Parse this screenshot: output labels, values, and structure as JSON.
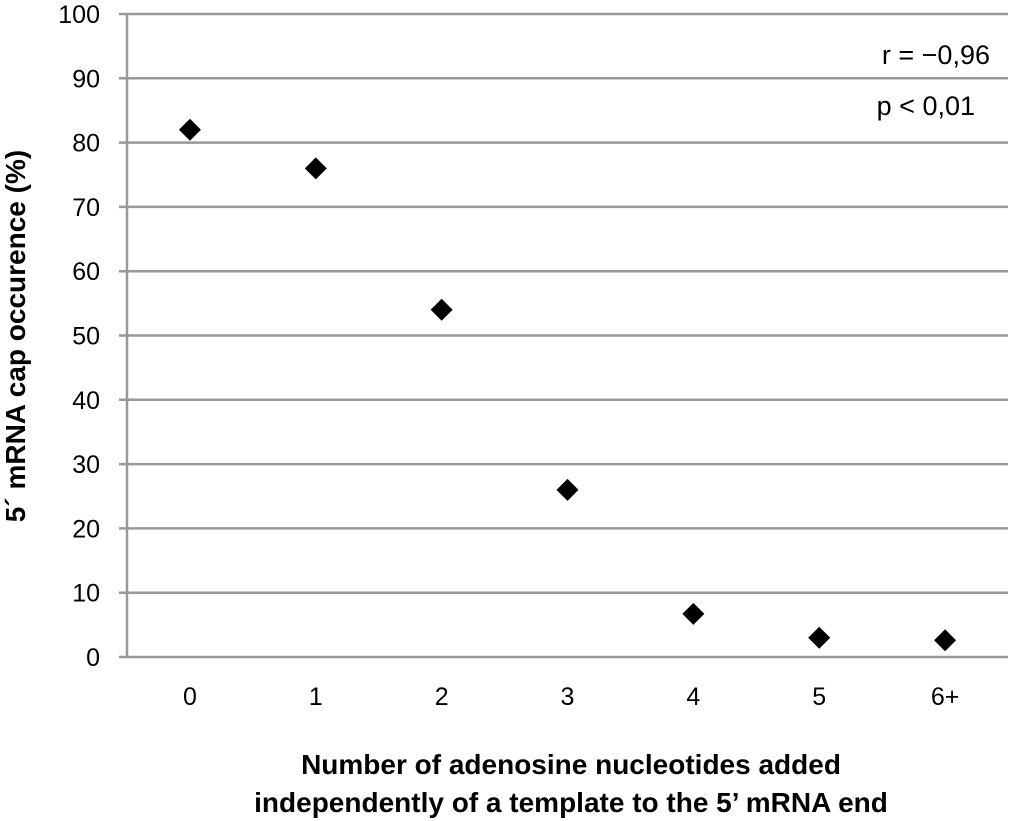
{
  "chart_data": {
    "type": "scatter",
    "categories": [
      "0",
      "1",
      "2",
      "3",
      "4",
      "5",
      "6+"
    ],
    "values": [
      82,
      76,
      54,
      26,
      6.7,
      3,
      2.6
    ],
    "ylim": [
      0,
      100
    ],
    "yticks": [
      "0",
      "10",
      "20",
      "30",
      "40",
      "50",
      "60",
      "70",
      "80",
      "90",
      "100"
    ],
    "grid": true,
    "marker": "diamond",
    "marker_color": "#000000",
    "grid_color": "#999999",
    "xlabel_line1": "Number of adenosine nucleotides added",
    "xlabel_line2": "independently of a template to the 5’ mRNA end",
    "ylabel": "5´ mRNA cap occurence (%)",
    "annotations": [
      "r = −0,96",
      "p < 0,01"
    ]
  }
}
